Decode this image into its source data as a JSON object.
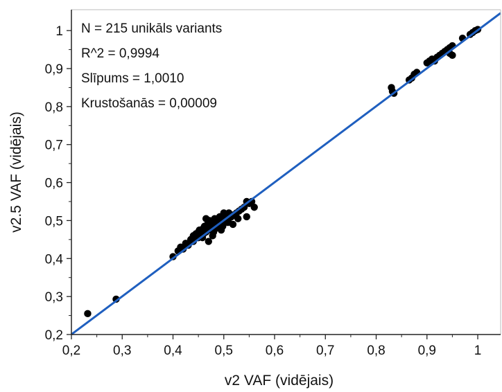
{
  "chart_data": {
    "type": "scatter",
    "xlabel": "v2 VAF (vidējais)",
    "ylabel": "v2.5 VAF (vidējais)",
    "xlim": [
      0.2,
      1.045
    ],
    "ylim": [
      0.2,
      1.055
    ],
    "x_ticks": [
      "0,2",
      "0,3",
      "0,4",
      "0,5",
      "0,6",
      "0,7",
      "0,8",
      "0,9",
      "1"
    ],
    "y_ticks": [
      "0,2",
      "0,3",
      "0,4",
      "0,5",
      "0,6",
      "0,7",
      "0,8",
      "0,9",
      "1"
    ],
    "annotations": [
      "N = 215 unikāls variants",
      "R^2 = 0,9994",
      "Slīpums = 1,0010",
      "Krustošanās = 0,00009"
    ],
    "fit_line": {
      "slope": 1.001,
      "intercept": 9e-05,
      "color": "#1f5fbf"
    },
    "point_color": "#000000",
    "grid": false,
    "points": [
      [
        0.232,
        0.255
      ],
      [
        0.288,
        0.293
      ],
      [
        0.4,
        0.405
      ],
      [
        0.41,
        0.42
      ],
      [
        0.415,
        0.43
      ],
      [
        0.42,
        0.425
      ],
      [
        0.425,
        0.44
      ],
      [
        0.43,
        0.435
      ],
      [
        0.435,
        0.45
      ],
      [
        0.44,
        0.445
      ],
      [
        0.44,
        0.46
      ],
      [
        0.445,
        0.465
      ],
      [
        0.45,
        0.455
      ],
      [
        0.45,
        0.47
      ],
      [
        0.455,
        0.46
      ],
      [
        0.455,
        0.475
      ],
      [
        0.46,
        0.465
      ],
      [
        0.46,
        0.48
      ],
      [
        0.465,
        0.505
      ],
      [
        0.465,
        0.47
      ],
      [
        0.47,
        0.485
      ],
      [
        0.47,
        0.445
      ],
      [
        0.475,
        0.475
      ],
      [
        0.475,
        0.49
      ],
      [
        0.48,
        0.47
      ],
      [
        0.48,
        0.495
      ],
      [
        0.485,
        0.48
      ],
      [
        0.485,
        0.5
      ],
      [
        0.49,
        0.485
      ],
      [
        0.49,
        0.505
      ],
      [
        0.495,
        0.475
      ],
      [
        0.495,
        0.5
      ],
      [
        0.5,
        0.495
      ],
      [
        0.5,
        0.51
      ],
      [
        0.5,
        0.52
      ],
      [
        0.505,
        0.5
      ],
      [
        0.505,
        0.515
      ],
      [
        0.51,
        0.505
      ],
      [
        0.51,
        0.52
      ],
      [
        0.515,
        0.51
      ],
      [
        0.52,
        0.515
      ],
      [
        0.525,
        0.52
      ],
      [
        0.53,
        0.525
      ],
      [
        0.535,
        0.53
      ],
      [
        0.54,
        0.535
      ],
      [
        0.545,
        0.51
      ],
      [
        0.545,
        0.55
      ],
      [
        0.55,
        0.545
      ],
      [
        0.555,
        0.55
      ],
      [
        0.56,
        0.535
      ],
      [
        0.458,
        0.455
      ],
      [
        0.468,
        0.49
      ],
      [
        0.478,
        0.46
      ],
      [
        0.488,
        0.49
      ],
      [
        0.498,
        0.485
      ],
      [
        0.508,
        0.495
      ],
      [
        0.518,
        0.49
      ],
      [
        0.528,
        0.505
      ],
      [
        0.472,
        0.5
      ],
      [
        0.462,
        0.485
      ],
      [
        0.452,
        0.475
      ],
      [
        0.482,
        0.505
      ],
      [
        0.492,
        0.51
      ],
      [
        0.83,
        0.85
      ],
      [
        0.832,
        0.84
      ],
      [
        0.835,
        0.835
      ],
      [
        0.865,
        0.87
      ],
      [
        0.87,
        0.875
      ],
      [
        0.875,
        0.885
      ],
      [
        0.88,
        0.89
      ],
      [
        0.9,
        0.915
      ],
      [
        0.905,
        0.92
      ],
      [
        0.91,
        0.925
      ],
      [
        0.915,
        0.92
      ],
      [
        0.92,
        0.93
      ],
      [
        0.925,
        0.935
      ],
      [
        0.93,
        0.94
      ],
      [
        0.935,
        0.945
      ],
      [
        0.94,
        0.95
      ],
      [
        0.945,
        0.955
      ],
      [
        0.95,
        0.96
      ],
      [
        0.95,
        0.935
      ],
      [
        0.945,
        0.94
      ],
      [
        0.97,
        0.98
      ],
      [
        0.985,
        0.99
      ],
      [
        0.99,
        0.995
      ],
      [
        0.995,
        1.0
      ],
      [
        1.0,
        1.003
      ]
    ]
  }
}
